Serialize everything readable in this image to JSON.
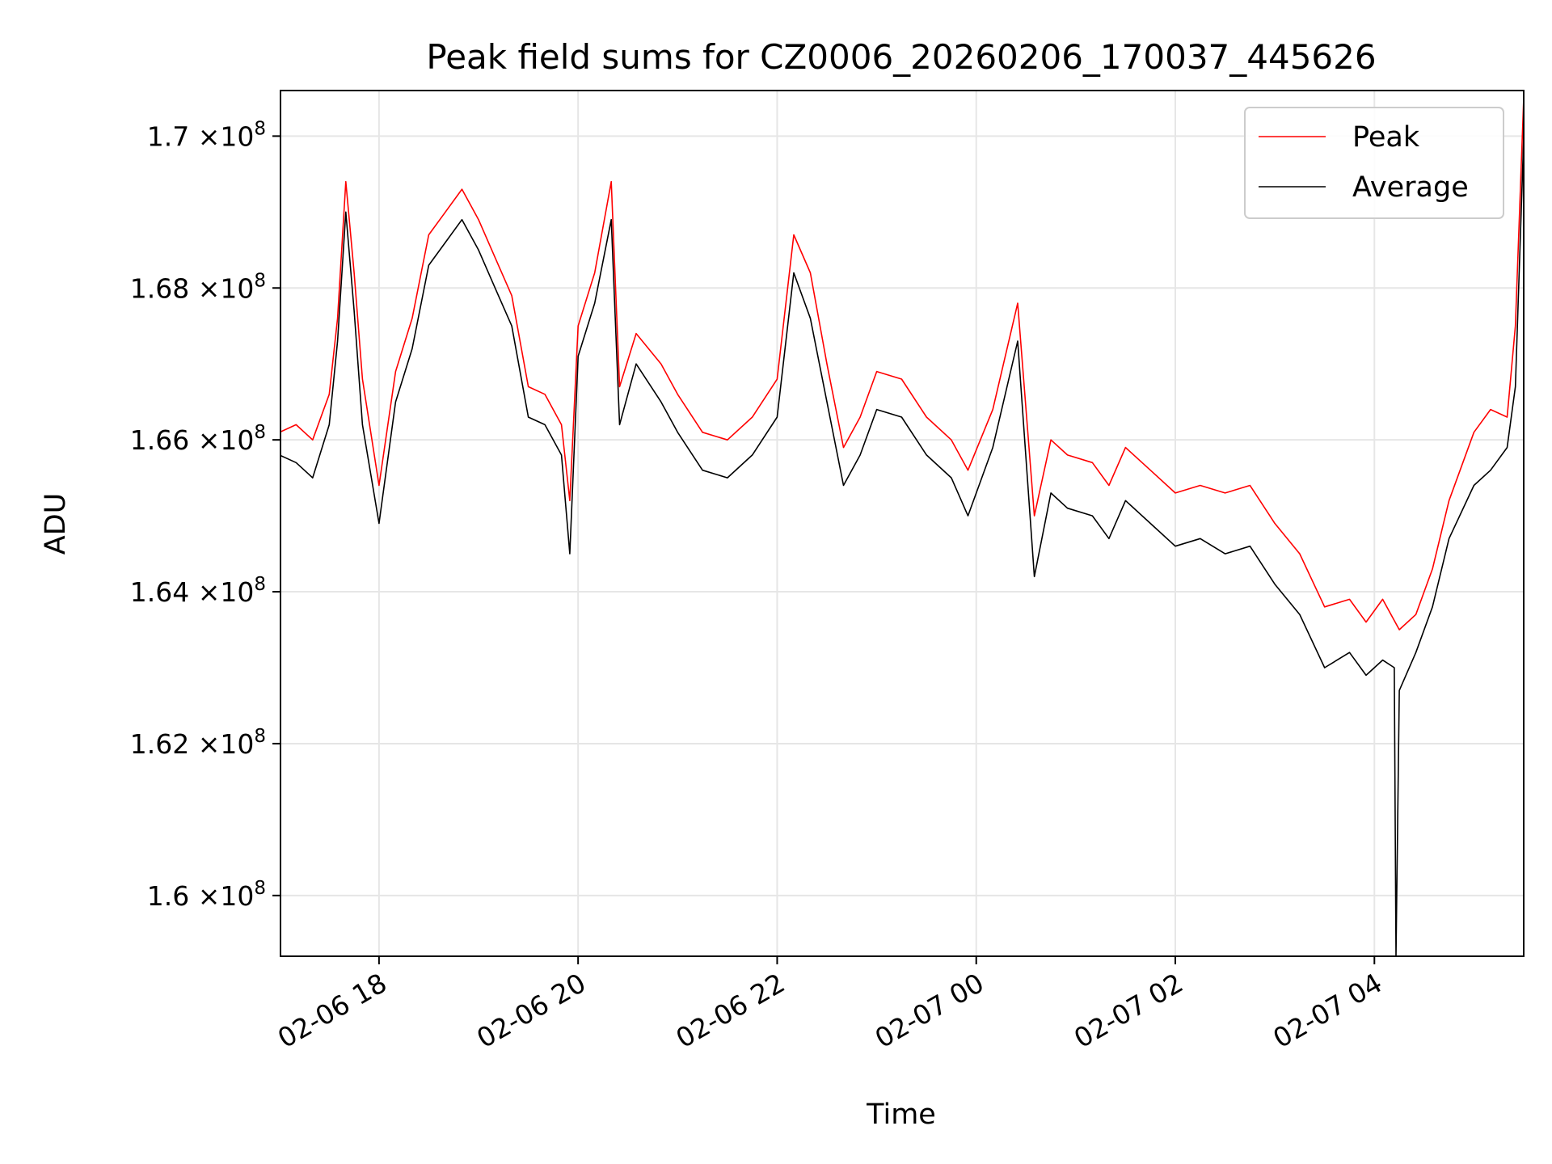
{
  "chart_data": {
    "type": "line",
    "title": "Peak field sums for CZ0006_20260206_170037_445626",
    "xlabel": "Time",
    "ylabel": "ADU",
    "x_range": [
      "2026-02-06 17:00:37",
      "2026-02-07 05:30:00"
    ],
    "ylim": [
      159200000,
      170600000
    ],
    "grid": true,
    "legend_position": "upper right",
    "x_ticks": [
      {
        "value": "2026-02-06 18:00",
        "label": "02-06 18"
      },
      {
        "value": "2026-02-06 20:00",
        "label": "02-06 20"
      },
      {
        "value": "2026-02-06 22:00",
        "label": "02-06 22"
      },
      {
        "value": "2026-02-07 00:00",
        "label": "02-07 00"
      },
      {
        "value": "2026-02-07 02:00",
        "label": "02-07 02"
      },
      {
        "value": "2026-02-07 04:00",
        "label": "02-07 04"
      }
    ],
    "y_ticks": [
      {
        "value": 160000000,
        "mantissa": "1.6",
        "exponent": "8"
      },
      {
        "value": 162000000,
        "mantissa": "1.62",
        "exponent": "8"
      },
      {
        "value": 164000000,
        "mantissa": "1.64",
        "exponent": "8"
      },
      {
        "value": 166000000,
        "mantissa": "1.66",
        "exponent": "8"
      },
      {
        "value": 168000000,
        "mantissa": "1.68",
        "exponent": "8"
      },
      {
        "value": 170000000,
        "mantissa": "1.7",
        "exponent": "8"
      }
    ],
    "tick_times_label": "×10",
    "series": [
      {
        "name": "Peak",
        "color": "#ff0000",
        "x": [
          "2026-02-06 17:00",
          "2026-02-06 17:10",
          "2026-02-06 17:20",
          "2026-02-06 17:30",
          "2026-02-06 17:35",
          "2026-02-06 17:40",
          "2026-02-06 17:45",
          "2026-02-06 17:50",
          "2026-02-06 18:00",
          "2026-02-06 18:10",
          "2026-02-06 18:20",
          "2026-02-06 18:30",
          "2026-02-06 18:40",
          "2026-02-06 18:50",
          "2026-02-06 19:00",
          "2026-02-06 19:10",
          "2026-02-06 19:20",
          "2026-02-06 19:30",
          "2026-02-06 19:40",
          "2026-02-06 19:50",
          "2026-02-06 19:55",
          "2026-02-06 20:00",
          "2026-02-06 20:10",
          "2026-02-06 20:20",
          "2026-02-06 20:25",
          "2026-02-06 20:35",
          "2026-02-06 20:50",
          "2026-02-06 21:00",
          "2026-02-06 21:15",
          "2026-02-06 21:30",
          "2026-02-06 21:45",
          "2026-02-06 22:00",
          "2026-02-06 22:10",
          "2026-02-06 22:20",
          "2026-02-06 22:30",
          "2026-02-06 22:40",
          "2026-02-06 22:50",
          "2026-02-06 23:00",
          "2026-02-06 23:15",
          "2026-02-06 23:30",
          "2026-02-06 23:45",
          "2026-02-06 23:55",
          "2026-02-07 00:10",
          "2026-02-07 00:25",
          "2026-02-07 00:35",
          "2026-02-07 00:45",
          "2026-02-07 00:55",
          "2026-02-07 01:10",
          "2026-02-07 01:20",
          "2026-02-07 01:30",
          "2026-02-07 01:45",
          "2026-02-07 02:00",
          "2026-02-07 02:15",
          "2026-02-07 02:30",
          "2026-02-07 02:45",
          "2026-02-07 03:00",
          "2026-02-07 03:15",
          "2026-02-07 03:30",
          "2026-02-07 03:45",
          "2026-02-07 03:55",
          "2026-02-07 04:05",
          "2026-02-07 04:15",
          "2026-02-07 04:25",
          "2026-02-07 04:35",
          "2026-02-07 04:45",
          "2026-02-07 05:00",
          "2026-02-07 05:10",
          "2026-02-07 05:20",
          "2026-02-07 05:25",
          "2026-02-07 05:30"
        ],
        "values": [
          166100000,
          166200000,
          166000000,
          166600000,
          167600000,
          169400000,
          168200000,
          166800000,
          165400000,
          166900000,
          167600000,
          168700000,
          169000000,
          169300000,
          168900000,
          168400000,
          167900000,
          166700000,
          166600000,
          166200000,
          165200000,
          167500000,
          168200000,
          169400000,
          166700000,
          167400000,
          167000000,
          166600000,
          166100000,
          166000000,
          166300000,
          166800000,
          168700000,
          168200000,
          167000000,
          165900000,
          166300000,
          166900000,
          166800000,
          166300000,
          166000000,
          165600000,
          166400000,
          167800000,
          165000000,
          166000000,
          165800000,
          165700000,
          165400000,
          165900000,
          165600000,
          165300000,
          165400000,
          165300000,
          165400000,
          164900000,
          164500000,
          163800000,
          163900000,
          163600000,
          163900000,
          163500000,
          163700000,
          164300000,
          165200000,
          166100000,
          166400000,
          166300000,
          167500000,
          170500000
        ]
      },
      {
        "name": "Average",
        "color": "#000000",
        "x": [
          "2026-02-06 17:00",
          "2026-02-06 17:10",
          "2026-02-06 17:20",
          "2026-02-06 17:30",
          "2026-02-06 17:35",
          "2026-02-06 17:40",
          "2026-02-06 17:45",
          "2026-02-06 17:50",
          "2026-02-06 18:00",
          "2026-02-06 18:10",
          "2026-02-06 18:20",
          "2026-02-06 18:30",
          "2026-02-06 18:40",
          "2026-02-06 18:50",
          "2026-02-06 19:00",
          "2026-02-06 19:10",
          "2026-02-06 19:20",
          "2026-02-06 19:30",
          "2026-02-06 19:40",
          "2026-02-06 19:50",
          "2026-02-06 19:55",
          "2026-02-06 20:00",
          "2026-02-06 20:10",
          "2026-02-06 20:20",
          "2026-02-06 20:25",
          "2026-02-06 20:35",
          "2026-02-06 20:50",
          "2026-02-06 21:00",
          "2026-02-06 21:15",
          "2026-02-06 21:30",
          "2026-02-06 21:45",
          "2026-02-06 22:00",
          "2026-02-06 22:10",
          "2026-02-06 22:20",
          "2026-02-06 22:30",
          "2026-02-06 22:40",
          "2026-02-06 22:50",
          "2026-02-06 23:00",
          "2026-02-06 23:15",
          "2026-02-06 23:30",
          "2026-02-06 23:45",
          "2026-02-06 23:55",
          "2026-02-07 00:10",
          "2026-02-07 00:25",
          "2026-02-07 00:35",
          "2026-02-07 00:45",
          "2026-02-07 00:55",
          "2026-02-07 01:10",
          "2026-02-07 01:20",
          "2026-02-07 01:30",
          "2026-02-07 01:45",
          "2026-02-07 02:00",
          "2026-02-07 02:15",
          "2026-02-07 02:30",
          "2026-02-07 02:45",
          "2026-02-07 03:00",
          "2026-02-07 03:15",
          "2026-02-07 03:30",
          "2026-02-07 03:45",
          "2026-02-07 03:55",
          "2026-02-07 04:05",
          "2026-02-07 04:12",
          "2026-02-07 04:13",
          "2026-02-07 04:15",
          "2026-02-07 04:25",
          "2026-02-07 04:35",
          "2026-02-07 04:45",
          "2026-02-07 05:00",
          "2026-02-07 05:10",
          "2026-02-07 05:20",
          "2026-02-07 05:25",
          "2026-02-07 05:30"
        ],
        "values": [
          165800000,
          165700000,
          165500000,
          166200000,
          167300000,
          169000000,
          167700000,
          166200000,
          164900000,
          166500000,
          167200000,
          168300000,
          168600000,
          168900000,
          168500000,
          168000000,
          167500000,
          166300000,
          166200000,
          165800000,
          164500000,
          167100000,
          167800000,
          168900000,
          166200000,
          167000000,
          166500000,
          166100000,
          165600000,
          165500000,
          165800000,
          166300000,
          168200000,
          167600000,
          166500000,
          165400000,
          165800000,
          166400000,
          166300000,
          165800000,
          165500000,
          165000000,
          165900000,
          167300000,
          164200000,
          165300000,
          165100000,
          165000000,
          164700000,
          165200000,
          164900000,
          164600000,
          164700000,
          164500000,
          164600000,
          164100000,
          163700000,
          163000000,
          163200000,
          162900000,
          163100000,
          163000000,
          159200000,
          162700000,
          163200000,
          163800000,
          164700000,
          165400000,
          165600000,
          165900000,
          166700000,
          170000000
        ]
      }
    ]
  }
}
